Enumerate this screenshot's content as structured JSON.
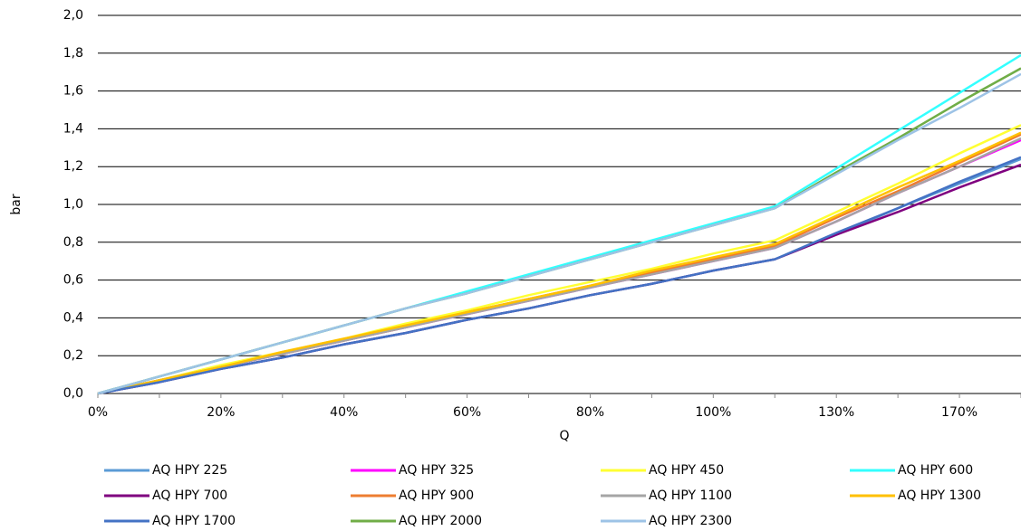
{
  "chart_data": {
    "type": "line",
    "x_label": "Q",
    "y_label": "bar",
    "categories": [
      "0%",
      null,
      "20%",
      null,
      "40%",
      null,
      "60%",
      null,
      "80%",
      null,
      "100%",
      null,
      "130%",
      null,
      "170%",
      null
    ],
    "ylim": [
      0,
      2
    ],
    "yticks": [
      {
        "value": 0,
        "label": "0,0"
      },
      {
        "value": 0.2,
        "label": "0,2"
      },
      {
        "value": 0.4,
        "label": "0,4"
      },
      {
        "value": 0.6,
        "label": "0,6"
      },
      {
        "value": 0.8,
        "label": "0,8"
      },
      {
        "value": 1,
        "label": "1,0"
      },
      {
        "value": 1.2,
        "label": "1,2"
      },
      {
        "value": 1.4,
        "label": "1,4"
      },
      {
        "value": 1.6,
        "label": "1,6"
      },
      {
        "value": 1.8,
        "label": "1,8"
      },
      {
        "value": 2,
        "label": "2,0"
      }
    ],
    "grid": true,
    "legend": "bottom",
    "series": [
      {
        "name": "AQ HPY 225",
        "color": "#5b9bd5",
        "values": [
          0,
          0.06,
          0.13,
          0.19,
          0.26,
          0.32,
          0.39,
          0.45,
          0.52,
          0.58,
          0.65,
          0.71,
          0.84,
          0.98,
          1.11,
          1.24
        ]
      },
      {
        "name": "AQ HPY 325",
        "color": "#ff00ff",
        "values": [
          0,
          0.07,
          0.14,
          0.21,
          0.28,
          0.35,
          0.42,
          0.49,
          0.56,
          0.63,
          0.7,
          0.77,
          0.91,
          1.06,
          1.2,
          1.34
        ]
      },
      {
        "name": "AQ HPY 450",
        "color": "#ffff33",
        "values": [
          0,
          0.07,
          0.15,
          0.22,
          0.29,
          0.37,
          0.44,
          0.52,
          0.59,
          0.66,
          0.74,
          0.81,
          0.96,
          1.11,
          1.27,
          1.42
        ]
      },
      {
        "name": "AQ HPY 600",
        "color": "#33ffff",
        "values": [
          0,
          0.09,
          0.18,
          0.27,
          0.36,
          0.45,
          0.54,
          0.63,
          0.72,
          0.81,
          0.9,
          0.99,
          1.19,
          1.39,
          1.59,
          1.79
        ]
      },
      {
        "name": "AQ HPY 700",
        "color": "#7f007f",
        "values": [
          0,
          0.06,
          0.13,
          0.19,
          0.26,
          0.32,
          0.39,
          0.45,
          0.52,
          0.58,
          0.65,
          0.71,
          0.84,
          0.96,
          1.09,
          1.21
        ]
      },
      {
        "name": "AQ HPY 900",
        "color": "#ed7d31",
        "values": [
          0,
          0.07,
          0.14,
          0.21,
          0.28,
          0.35,
          0.43,
          0.5,
          0.57,
          0.64,
          0.71,
          0.78,
          0.93,
          1.07,
          1.22,
          1.37
        ]
      },
      {
        "name": "AQ HPY 1100",
        "color": "#a5a5a5",
        "values": [
          0,
          0.07,
          0.14,
          0.21,
          0.28,
          0.35,
          0.42,
          0.49,
          0.56,
          0.63,
          0.7,
          0.77,
          0.91,
          1.06,
          1.2,
          1.35
        ]
      },
      {
        "name": "AQ HPY 1300",
        "color": "#ffc000",
        "values": [
          0,
          0.07,
          0.14,
          0.22,
          0.29,
          0.36,
          0.43,
          0.5,
          0.57,
          0.65,
          0.72,
          0.79,
          0.94,
          1.09,
          1.23,
          1.38
        ]
      },
      {
        "name": "AQ HPY 1700",
        "color": "#4472c4",
        "values": [
          0,
          0.06,
          0.13,
          0.19,
          0.26,
          0.32,
          0.39,
          0.45,
          0.52,
          0.58,
          0.65,
          0.71,
          0.85,
          0.98,
          1.12,
          1.25
        ]
      },
      {
        "name": "AQ HPY 2000",
        "color": "#70ad47",
        "values": [
          0,
          0.09,
          0.18,
          0.27,
          0.36,
          0.45,
          0.53,
          0.62,
          0.71,
          0.8,
          0.89,
          0.98,
          1.17,
          1.35,
          1.54,
          1.72
        ]
      },
      {
        "name": "AQ HPY 2300",
        "color": "#9dc3e6",
        "values": [
          0,
          0.09,
          0.18,
          0.27,
          0.36,
          0.45,
          0.53,
          0.62,
          0.71,
          0.8,
          0.89,
          0.98,
          1.16,
          1.34,
          1.51,
          1.69
        ]
      }
    ]
  }
}
